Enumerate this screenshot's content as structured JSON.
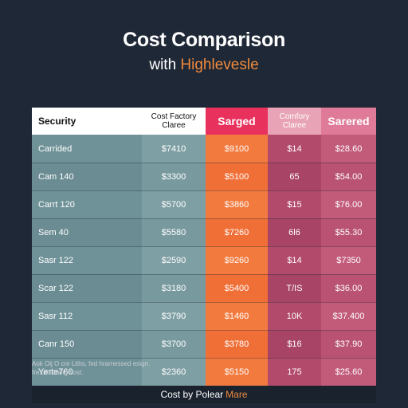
{
  "title": "Cost Comparison",
  "subtitle": {
    "prefix": "with ",
    "highlight": "Highlevesle"
  },
  "table": {
    "headers": [
      "Security",
      "Cost Factory\nClaree",
      "Sarged",
      "Comfory\nClaree",
      "Sarered"
    ],
    "rows": [
      [
        "Carrided",
        "$7410",
        "$9100",
        "$14",
        "$28.60"
      ],
      [
        "Cam 140",
        "$3300",
        "$5100",
        "65",
        "$54.00"
      ],
      [
        "Carrt 120",
        "$5700",
        "$3860",
        "$15",
        "$76.00"
      ],
      [
        "Sem 40",
        "$5580",
        "$7260",
        "6l6",
        "$55.30"
      ],
      [
        "Sasr 122",
        "$2590",
        "$9260",
        "$14",
        "$7350"
      ],
      [
        "Scar 122",
        "$3180",
        "$5400",
        "T/IS",
        "$36.00"
      ],
      [
        "Sasr 112",
        "$3790",
        "$1460",
        "10K",
        "$37.400"
      ],
      [
        "Canr 150",
        "$3700",
        "$3780",
        "$16",
        "$37.90"
      ],
      [
        "Yerte760",
        "$2360",
        "$5150",
        "175",
        "$25.60"
      ]
    ]
  },
  "footnote": {
    "line1": "Aok Olj O cre Liths, fed hrarnessed esign.",
    "line2": "fre Leturning bost."
  },
  "footer": {
    "prefix": "Cost by Polear",
    "highlight": "Mare"
  }
}
